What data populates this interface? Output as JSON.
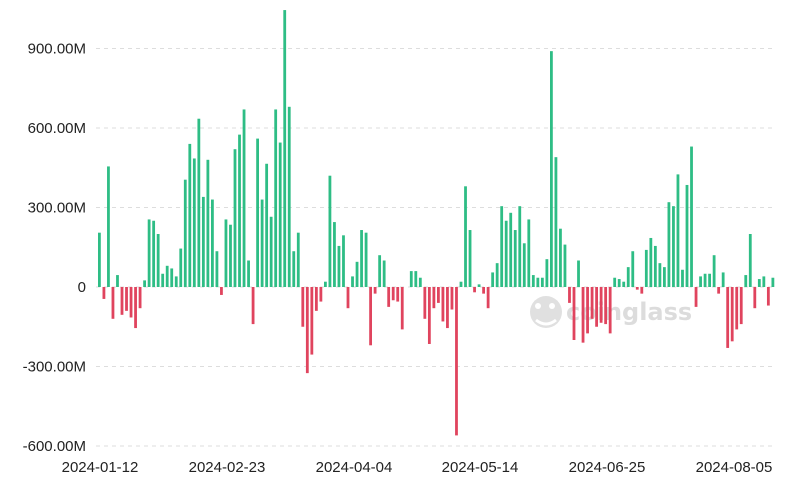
{
  "chart_data": {
    "type": "bar",
    "title": "",
    "xlabel": "",
    "ylabel": "",
    "ylim": [
      -600,
      1000
    ],
    "unit": "M",
    "grid": "horizontal dashed",
    "yticks": [
      {
        "value": 900,
        "label": "900.00M"
      },
      {
        "value": 600,
        "label": "600.00M"
      },
      {
        "value": 300,
        "label": "300.00M"
      },
      {
        "value": 0,
        "label": "0"
      },
      {
        "value": -300,
        "label": "-300.00M"
      },
      {
        "value": -600,
        "label": "-600.00M"
      }
    ],
    "xticks": [
      "2024-01-12",
      "2024-02-23",
      "2024-04-04",
      "2024-05-14",
      "2024-06-25",
      "2024-08-05"
    ],
    "colors": {
      "positive": "#2ebd85",
      "negative": "#e0445e",
      "grid": "#dddddd"
    },
    "values": [
      205,
      -45,
      455,
      -120,
      45,
      -105,
      -90,
      -115,
      -155,
      -80,
      25,
      255,
      250,
      200,
      50,
      80,
      70,
      40,
      145,
      405,
      540,
      485,
      635,
      340,
      480,
      330,
      135,
      -30,
      255,
      235,
      520,
      575,
      670,
      100,
      -140,
      560,
      330,
      465,
      265,
      670,
      545,
      1045,
      680,
      135,
      205,
      -150,
      -325,
      -255,
      -90,
      -55,
      20,
      420,
      245,
      155,
      195,
      -80,
      40,
      95,
      215,
      205,
      -220,
      -25,
      120,
      100,
      -75,
      -50,
      -55,
      -160,
      0,
      60,
      60,
      35,
      -120,
      -215,
      -80,
      -60,
      -130,
      -155,
      -85,
      -560,
      20,
      380,
      215,
      -20,
      10,
      -25,
      -80,
      55,
      90,
      305,
      250,
      280,
      215,
      305,
      165,
      255,
      45,
      35,
      35,
      105,
      890,
      490,
      220,
      160,
      -60,
      -200,
      100,
      -210,
      -175,
      -120,
      -150,
      -135,
      -140,
      -175,
      35,
      30,
      20,
      75,
      135,
      -10,
      -25,
      140,
      185,
      155,
      90,
      75,
      320,
      305,
      425,
      65,
      385,
      530,
      -75,
      40,
      50,
      50,
      120,
      -25,
      55,
      -230,
      -205,
      -160,
      -140,
      45,
      200,
      -80,
      30,
      40,
      -70,
      35
    ]
  },
  "watermark": {
    "text": "coinglass",
    "icon": "coinglass-logo-icon"
  }
}
